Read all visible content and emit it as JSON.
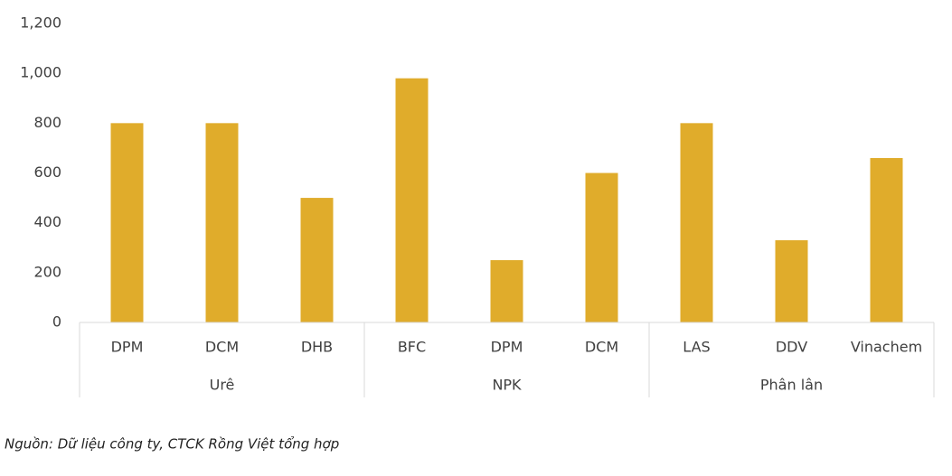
{
  "chart_data": {
    "type": "bar",
    "color": "#e0ac2b",
    "groups": [
      {
        "name": "Urê",
        "categories": [
          "DPM",
          "DCM",
          "DHB"
        ],
        "values": [
          800,
          800,
          500
        ]
      },
      {
        "name": "NPK",
        "categories": [
          "BFC",
          "DPM",
          "DCM"
        ],
        "values": [
          980,
          250,
          600
        ]
      },
      {
        "name": "Phân lân",
        "categories": [
          "LAS",
          "DDV",
          "Vinachem"
        ],
        "values": [
          800,
          330,
          660
        ]
      }
    ],
    "ylim": [
      0,
      1200
    ],
    "yticks": [
      0,
      200,
      400,
      600,
      800,
      {
        "value": 1000,
        "label": "1,000"
      },
      {
        "value": 1200,
        "label": "1,200"
      }
    ],
    "source": "Nguồn: Dữ liệu công ty, CTCK Rồng Việt tổng hợp"
  }
}
